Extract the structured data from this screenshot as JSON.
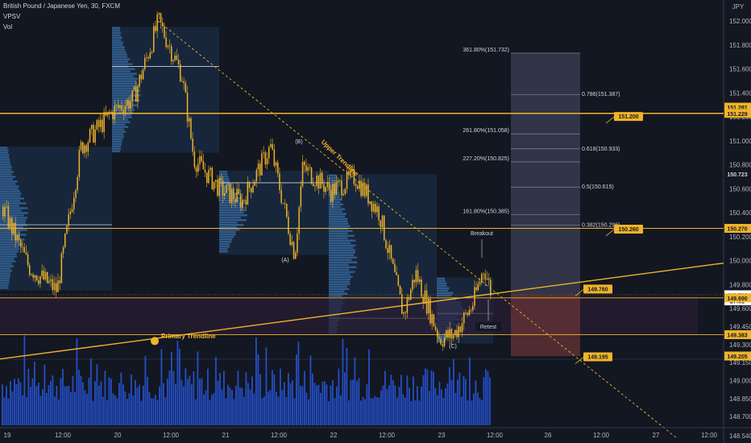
{
  "header": {
    "symbol": "British Pound / Japanese Yen, 30, FXCM",
    "indicator1": "VPSV",
    "indicator2": "Vol"
  },
  "chart_data": {
    "type": "candlestick",
    "currency": "JPY",
    "ylim": [
      148.45,
      152.1
    ],
    "y_ticks": [
      152.0,
      151.8,
      151.6,
      151.4,
      151.2,
      151.0,
      150.8,
      150.6,
      150.4,
      150.2,
      150.0,
      149.8,
      149.6,
      149.45,
      149.3,
      149.15,
      149.0,
      148.85,
      148.7,
      148.54
    ],
    "y_tick_labels": [
      "152.000",
      "151.800",
      "151.600",
      "151.400",
      "151.200",
      "151.000",
      "150.800",
      "150.600",
      "150.400",
      "150.200",
      "150.000",
      "149.800",
      "149.600",
      "149.450",
      "149.300",
      "149.150",
      "149.000",
      "148.850",
      "148.700",
      "148.540"
    ],
    "x_ticks": [
      "19",
      "12:00",
      "20",
      "12:00",
      "21",
      "12:00",
      "22",
      "12:00",
      "23",
      "12:00",
      "26",
      "12:00",
      "27",
      "12:00"
    ],
    "price_badges": [
      {
        "value": 151.281,
        "label": "151.281",
        "bg": "#f0b429",
        "fg": "#131722"
      },
      {
        "value": 151.229,
        "label": "151.229",
        "bg": "#f0b429",
        "fg": "#131722"
      },
      {
        "value": 150.723,
        "label": "150.723",
        "bg": "#131722",
        "fg": "#d1d4dc"
      },
      {
        "value": 150.27,
        "label": "150.270",
        "bg": "#f0b429",
        "fg": "#131722"
      },
      {
        "value": 149.716,
        "label": "149.716",
        "bg": "#ffffff",
        "fg": "#131722"
      },
      {
        "value": 149.665,
        "label": "27:51",
        "bg": "#ffffff",
        "fg": "#131722"
      },
      {
        "value": 149.69,
        "label": "149.690",
        "bg": "#f0b429",
        "fg": "#131722"
      },
      {
        "value": 149.383,
        "label": "149.383",
        "bg": "#f0b429",
        "fg": "#131722"
      },
      {
        "value": 149.205,
        "label": "149.205",
        "bg": "#f0b429",
        "fg": "#131722"
      }
    ],
    "horizontal_levels": [
      151.229,
      150.27,
      149.69,
      149.383
    ],
    "fib_extension": [
      {
        "label": "361.80%(151.732)",
        "value": 151.732
      },
      {
        "label": "261.80%(151.058)",
        "value": 151.058
      },
      {
        "label": "227.20%(150.825)",
        "value": 150.825
      },
      {
        "label": "161.80%(150.385)",
        "value": 150.385
      }
    ],
    "fib_retracement": [
      {
        "label": "0.786(151.387)",
        "value": 151.387
      },
      {
        "label": "0.618(150.933)",
        "value": 150.933
      },
      {
        "label": "0.5(150.615)",
        "value": 150.615
      },
      {
        "label": "0.382(150.296)",
        "value": 150.296
      }
    ],
    "target_flags": [
      {
        "label": "151.200",
        "value": 151.2
      },
      {
        "label": "150.260",
        "value": 150.26
      },
      {
        "label": "149.760",
        "value": 149.76
      },
      {
        "label": "149.195",
        "value": 149.195
      }
    ],
    "annotations": [
      {
        "text": "Upper Trendline"
      },
      {
        "text": "Primary Trendline"
      },
      {
        "text": "Breakout"
      },
      {
        "text": "Retest"
      },
      {
        "text": "(A)"
      },
      {
        "text": "(B)"
      },
      {
        "text": "(C)"
      }
    ],
    "colors": {
      "background": "#131722",
      "candle": "#f0b429",
      "volume": "#2962ff",
      "trendline": "#f0b429",
      "profile": "#1e3a5f"
    }
  }
}
